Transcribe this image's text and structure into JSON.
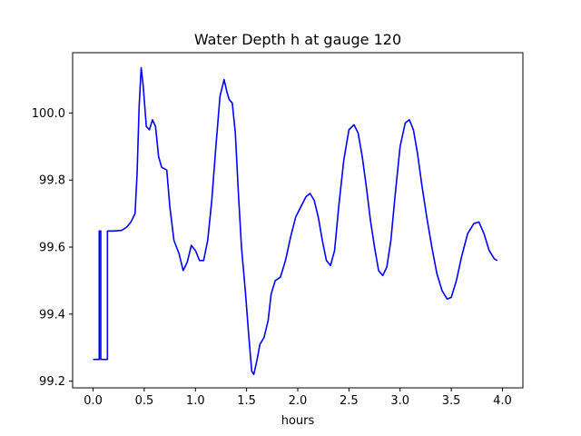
{
  "chart_data": {
    "type": "line",
    "title": "Water Depth h at gauge 120",
    "xlabel": "hours",
    "ylabel": "",
    "xlim": [
      -0.2,
      4.2
    ],
    "ylim": [
      99.18,
      100.18
    ],
    "xticks": [
      0.0,
      0.5,
      1.0,
      1.5,
      2.0,
      2.5,
      3.0,
      3.5,
      4.0
    ],
    "xtick_labels": [
      "0.0",
      "0.5",
      "1.0",
      "1.5",
      "2.0",
      "2.5",
      "3.0",
      "3.5",
      "4.0"
    ],
    "yticks": [
      99.2,
      99.4,
      99.6,
      99.8,
      100.0
    ],
    "ytick_labels": [
      "99.2",
      "99.4",
      "99.6",
      "99.8",
      "100.0"
    ],
    "grid": false,
    "series": [
      {
        "color": "#0000ff",
        "points": [
          [
            0.0,
            99.265
          ],
          [
            0.06,
            99.265
          ],
          [
            0.06,
            99.648
          ],
          [
            0.075,
            99.648
          ],
          [
            0.075,
            99.265
          ],
          [
            0.14,
            99.265
          ],
          [
            0.14,
            99.648
          ],
          [
            0.2,
            99.648
          ],
          [
            0.28,
            99.65
          ],
          [
            0.33,
            99.66
          ],
          [
            0.37,
            99.675
          ],
          [
            0.41,
            99.7
          ],
          [
            0.43,
            99.82
          ],
          [
            0.45,
            100.02
          ],
          [
            0.47,
            100.135
          ],
          [
            0.49,
            100.08
          ],
          [
            0.52,
            99.96
          ],
          [
            0.55,
            99.95
          ],
          [
            0.58,
            99.98
          ],
          [
            0.61,
            99.96
          ],
          [
            0.64,
            99.87
          ],
          [
            0.67,
            99.838
          ],
          [
            0.72,
            99.83
          ],
          [
            0.75,
            99.72
          ],
          [
            0.79,
            99.62
          ],
          [
            0.84,
            99.58
          ],
          [
            0.88,
            99.53
          ],
          [
            0.92,
            99.555
          ],
          [
            0.96,
            99.605
          ],
          [
            1.0,
            99.59
          ],
          [
            1.04,
            99.56
          ],
          [
            1.08,
            99.56
          ],
          [
            1.12,
            99.62
          ],
          [
            1.16,
            99.74
          ],
          [
            1.2,
            99.9
          ],
          [
            1.24,
            100.05
          ],
          [
            1.28,
            100.1
          ],
          [
            1.31,
            100.06
          ],
          [
            1.33,
            100.04
          ],
          [
            1.36,
            100.03
          ],
          [
            1.39,
            99.94
          ],
          [
            1.42,
            99.76
          ],
          [
            1.45,
            99.6
          ],
          [
            1.49,
            99.46
          ],
          [
            1.52,
            99.34
          ],
          [
            1.55,
            99.23
          ],
          [
            1.57,
            99.22
          ],
          [
            1.6,
            99.26
          ],
          [
            1.63,
            99.31
          ],
          [
            1.67,
            99.33
          ],
          [
            1.71,
            99.38
          ],
          [
            1.74,
            99.46
          ],
          [
            1.78,
            99.5
          ],
          [
            1.83,
            99.51
          ],
          [
            1.88,
            99.56
          ],
          [
            1.93,
            99.63
          ],
          [
            1.98,
            99.69
          ],
          [
            2.03,
            99.72
          ],
          [
            2.08,
            99.75
          ],
          [
            2.12,
            99.76
          ],
          [
            2.16,
            99.74
          ],
          [
            2.2,
            99.69
          ],
          [
            2.24,
            99.62
          ],
          [
            2.28,
            99.56
          ],
          [
            2.32,
            99.545
          ],
          [
            2.36,
            99.59
          ],
          [
            2.4,
            99.72
          ],
          [
            2.45,
            99.86
          ],
          [
            2.5,
            99.95
          ],
          [
            2.55,
            99.965
          ],
          [
            2.59,
            99.94
          ],
          [
            2.63,
            99.87
          ],
          [
            2.67,
            99.78
          ],
          [
            2.71,
            99.68
          ],
          [
            2.75,
            99.6
          ],
          [
            2.79,
            99.53
          ],
          [
            2.83,
            99.515
          ],
          [
            2.87,
            99.54
          ],
          [
            2.91,
            99.62
          ],
          [
            2.95,
            99.75
          ],
          [
            3.0,
            99.9
          ],
          [
            3.05,
            99.97
          ],
          [
            3.09,
            99.98
          ],
          [
            3.13,
            99.95
          ],
          [
            3.17,
            99.88
          ],
          [
            3.21,
            99.79
          ],
          [
            3.26,
            99.69
          ],
          [
            3.31,
            99.6
          ],
          [
            3.36,
            99.52
          ],
          [
            3.41,
            99.47
          ],
          [
            3.46,
            99.445
          ],
          [
            3.5,
            99.45
          ],
          [
            3.55,
            99.5
          ],
          [
            3.6,
            99.57
          ],
          [
            3.66,
            99.64
          ],
          [
            3.72,
            99.67
          ],
          [
            3.77,
            99.675
          ],
          [
            3.82,
            99.64
          ],
          [
            3.87,
            99.59
          ],
          [
            3.92,
            99.565
          ],
          [
            3.95,
            99.56
          ]
        ]
      }
    ],
    "colors": {
      "line": "#0000ff",
      "axes": "#000000",
      "background": "#ffffff"
    }
  }
}
